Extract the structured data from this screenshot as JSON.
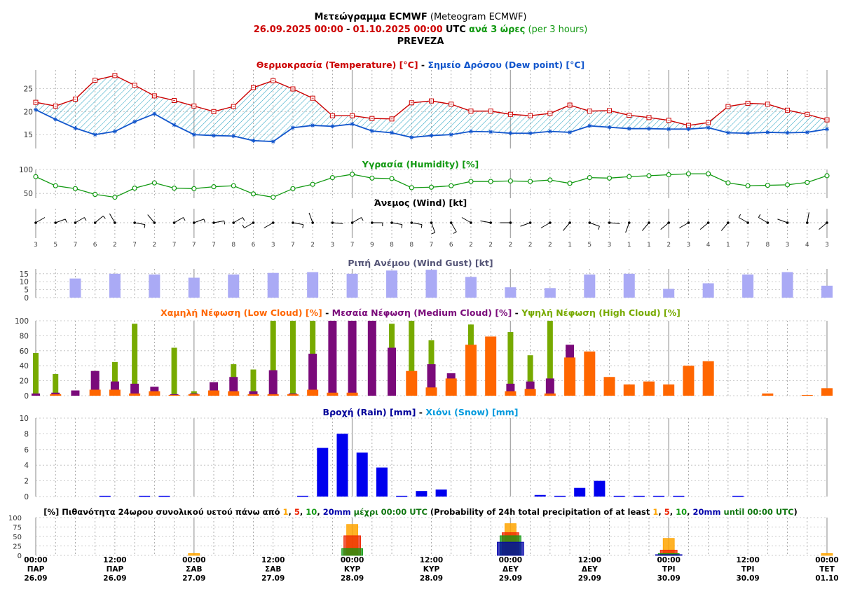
{
  "header": {
    "title_bold": "Μετεώγραμμα ECMWF",
    "title_rest": "(Meteogram ECMWF)",
    "date_from": "26.09.2025 00:00",
    "date_sep": "-",
    "date_to": "01.10.2025 00:00",
    "utc": "UTC",
    "step_bold": "ανά 3 ώρες",
    "step_rest": "(per 3 hours)",
    "location": "PREVEZA"
  },
  "colors": {
    "temp": "#cc0000",
    "dew": "#1155cc",
    "humidity": "#119911",
    "gust": "#aaaaf5",
    "low": "#ff6600",
    "medium": "#7a0a7a",
    "high": "#77aa00",
    "rain": "#0000ee",
    "snow": "#0099dd",
    "p1": "#ffa500",
    "p5": "#ee2200",
    "p10": "#119911",
    "p20": "#0000aa"
  },
  "chart_data": [
    {
      "type": "line",
      "title": [
        {
          "text": "Θερμοκρασία (Temperature) [°C]",
          "color": "#cc0000"
        },
        {
          "text": " - ",
          "color": "#000000"
        },
        {
          "text": "Σημείο Δρόσου (Dew point) [°C]",
          "color": "#1155cc"
        }
      ],
      "ylim": [
        12,
        29
      ],
      "yticks": [
        15,
        20,
        25
      ],
      "series": [
        {
          "name": "Temperature",
          "values": [
            22.0,
            21.2,
            22.7,
            26.8,
            27.8,
            25.7,
            23.4,
            22.4,
            21.2,
            20.0,
            21.1,
            25.2,
            26.7,
            24.9,
            22.9,
            19.1,
            19.1,
            18.5,
            18.4,
            21.9,
            22.3,
            21.6,
            20.1,
            20.1,
            19.4,
            19.1,
            19.6,
            21.4,
            20.1,
            20.2,
            19.2,
            18.7,
            18.1,
            17.0,
            17.6,
            21.1,
            21.8,
            21.6,
            20.3,
            19.4,
            18.2
          ]
        },
        {
          "name": "Dew point",
          "values": [
            20.4,
            18.3,
            16.4,
            15.0,
            15.7,
            17.8,
            19.5,
            17.1,
            15.0,
            14.8,
            14.7,
            13.7,
            13.5,
            16.5,
            17.0,
            16.8,
            17.3,
            15.8,
            15.4,
            14.4,
            14.8,
            15.0,
            15.7,
            15.6,
            15.3,
            15.3,
            15.7,
            15.5,
            16.9,
            16.6,
            16.3,
            16.3,
            16.2,
            16.2,
            16.5,
            15.4,
            15.3,
            15.5,
            15.4,
            15.5,
            16.2
          ]
        }
      ]
    },
    {
      "type": "line",
      "title": [
        {
          "text": "Υγρασία (Humidity) [%]",
          "color": "#119911"
        }
      ],
      "ylim": [
        40,
        100
      ],
      "yticks": [
        50,
        100
      ],
      "series": [
        {
          "name": "Humidity",
          "values": [
            85,
            66,
            60,
            48,
            42,
            61,
            72,
            61,
            60,
            64,
            66,
            49,
            42,
            60,
            69,
            83,
            90,
            82,
            81,
            62,
            63,
            66,
            75,
            75,
            76,
            75,
            78,
            71,
            83,
            82,
            85,
            87,
            89,
            91,
            91,
            72,
            66,
            67,
            68,
            73,
            87
          ]
        }
      ]
    },
    {
      "type": "scatter",
      "title": [
        {
          "text": "Άνεμος (Wind) [kt]",
          "color": "#000000"
        }
      ],
      "speed": [
        3,
        5,
        7,
        6,
        2,
        7,
        2,
        7,
        7,
        7,
        8,
        6,
        3,
        7,
        2,
        3,
        7,
        9,
        8,
        8,
        7,
        6,
        2,
        2,
        2,
        2,
        2,
        1,
        5,
        3,
        1,
        1,
        2,
        3,
        4,
        1,
        7,
        8,
        3,
        4,
        3
      ],
      "direction_deg": [
        60,
        70,
        60,
        50,
        330,
        100,
        320,
        60,
        70,
        80,
        60,
        240,
        240,
        100,
        340,
        95,
        60,
        90,
        100,
        100,
        160,
        150,
        300,
        280,
        270,
        250,
        240,
        220,
        110,
        95,
        200,
        220,
        230,
        240,
        230,
        220,
        300,
        300,
        290,
        10,
        230
      ]
    },
    {
      "type": "bar",
      "title": [
        {
          "text": "Ριπή Ανέμου (Wind Gust) [kt]",
          "color": "#555577"
        }
      ],
      "ylim": [
        0,
        18
      ],
      "yticks": [
        0,
        5,
        10,
        15
      ],
      "slot_index": [
        2,
        4,
        6,
        8,
        10,
        12,
        14,
        16,
        18,
        20,
        22,
        24,
        26,
        28,
        30,
        32,
        34,
        36,
        38,
        40
      ],
      "values": [
        12,
        15,
        14.5,
        12.5,
        14.5,
        15.5,
        16,
        15,
        17,
        17.5,
        13,
        6.5,
        6,
        14.5,
        15,
        5.5,
        9,
        14.5,
        16,
        7.5
      ]
    },
    {
      "type": "bar",
      "title": [
        {
          "text": "Χαμηλή Νέφωση (Low Cloud) [%]",
          "color": "#ff6600"
        },
        {
          "text": " - ",
          "color": "#000000"
        },
        {
          "text": "Μεσαία Νέφωση (Medium Cloud) [%]",
          "color": "#7a0a7a"
        },
        {
          "text": " - ",
          "color": "#000000"
        },
        {
          "text": "Υψηλή Νέφωση (High Cloud) [%]",
          "color": "#77aa00"
        }
      ],
      "ylim": [
        0,
        100
      ],
      "yticks": [
        0,
        20,
        40,
        60,
        80,
        100
      ],
      "series": [
        {
          "name": "High Cloud",
          "values": [
            57,
            29,
            0,
            33,
            45,
            96,
            0,
            64,
            6,
            0,
            42,
            35,
            100,
            100,
            100,
            0,
            0,
            0,
            96,
            100,
            74,
            0,
            95,
            0,
            85,
            54,
            100,
            0,
            0,
            0,
            0,
            0,
            0,
            0,
            0,
            0,
            0,
            0,
            0,
            0,
            0
          ]
        },
        {
          "name": "Medium Cloud",
          "values": [
            3,
            4,
            7,
            33,
            19,
            16,
            12,
            2,
            3,
            18,
            25,
            6,
            34,
            3,
            56,
            100,
            100,
            100,
            64,
            0,
            42,
            30,
            0,
            0,
            16,
            19,
            23,
            68,
            0,
            0,
            0,
            0,
            0,
            0,
            0,
            0,
            0,
            0,
            0,
            0,
            0
          ]
        },
        {
          "name": "Low Cloud",
          "values": [
            0,
            2,
            0,
            8,
            8,
            3,
            6,
            1,
            2,
            7,
            6,
            2,
            2,
            2,
            8,
            4,
            4,
            0,
            0,
            33,
            11,
            23,
            68,
            79,
            6,
            9,
            3,
            51,
            59,
            25,
            15,
            19,
            15,
            40,
            46,
            0,
            0,
            3,
            0,
            1,
            10
          ]
        }
      ]
    },
    {
      "type": "bar",
      "title": [
        {
          "text": "Βροχή (Rain) [mm]",
          "color": "#000099"
        },
        {
          "text": " - ",
          "color": "#000000"
        },
        {
          "text": "Χιόνι (Snow) [mm]",
          "color": "#0099dd"
        }
      ],
      "ylim": [
        0,
        10
      ],
      "yticks": [
        0,
        2,
        4,
        6,
        8,
        10
      ],
      "series": [
        {
          "name": "Rain",
          "values": [
            0,
            0,
            0,
            0,
            0.1,
            0,
            0.1,
            0.1,
            0,
            0,
            0,
            0,
            0,
            0,
            0.1,
            6.2,
            8.0,
            5.6,
            3.7,
            0.1,
            0.7,
            0.9,
            0,
            0,
            0,
            0,
            0.2,
            0.1,
            1.1,
            2.0,
            0.1,
            0.1,
            0.1,
            0.1,
            0,
            0,
            0.1,
            0,
            0,
            0,
            0
          ]
        },
        {
          "name": "Snow",
          "values": [
            0,
            0,
            0,
            0,
            0,
            0,
            0,
            0,
            0,
            0,
            0,
            0,
            0,
            0,
            0,
            0,
            0,
            0,
            0,
            0,
            0,
            0,
            0,
            0,
            0,
            0,
            0,
            0,
            0,
            0,
            0,
            0,
            0,
            0,
            0,
            0,
            0,
            0,
            0,
            0,
            0
          ]
        }
      ]
    },
    {
      "type": "bar",
      "title": [
        {
          "text": "[%] Πιθανότητα 24ωρου συνολικού υετού πάνω από ",
          "color": "#000000",
          "bold": true
        },
        {
          "text": "1",
          "color": "#ffa500",
          "bold": true
        },
        {
          "text": ", ",
          "color": "#000000",
          "bold": true
        },
        {
          "text": "5",
          "color": "#ee2200",
          "bold": true
        },
        {
          "text": ", ",
          "color": "#000000",
          "bold": true
        },
        {
          "text": "10",
          "color": "#119911",
          "bold": true
        },
        {
          "text": ", ",
          "color": "#000000",
          "bold": true
        },
        {
          "text": "20mm",
          "color": "#0000aa",
          "bold": true
        },
        {
          "text": " μέχρι 00:00 UTC",
          "color": "#117711",
          "bold": true
        },
        {
          "text": " (Probability of 24h total precipitation of at least ",
          "color": "#000000"
        },
        {
          "text": "1",
          "color": "#ffa500"
        },
        {
          "text": ", ",
          "color": "#000000"
        },
        {
          "text": "5",
          "color": "#ee2200"
        },
        {
          "text": ", ",
          "color": "#000000"
        },
        {
          "text": "10",
          "color": "#119911"
        },
        {
          "text": ", ",
          "color": "#000000"
        },
        {
          "text": "20mm",
          "color": "#0000aa"
        },
        {
          "text": " until 00:00 UTC",
          "color": "#117711"
        },
        {
          "text": ")",
          "color": "#000000"
        }
      ],
      "ylim": [
        0,
        100
      ],
      "yticks": [
        0,
        25,
        50,
        75,
        100
      ],
      "slot_index": [
        8,
        16,
        24,
        32,
        40
      ],
      "series": [
        {
          "name": "1mm",
          "values": [
            5,
            82,
            84,
            45,
            5
          ]
        },
        {
          "name": "5mm",
          "values": [
            0,
            52,
            60,
            14,
            0
          ]
        },
        {
          "name": "10mm",
          "values": [
            0,
            18,
            52,
            5,
            0
          ]
        },
        {
          "name": "20mm",
          "values": [
            0,
            0,
            35,
            2,
            0
          ]
        }
      ]
    }
  ],
  "time_axis": {
    "labels": [
      {
        "index": 0,
        "time": "00:00",
        "day": "ΠΑΡ",
        "date": "26.09"
      },
      {
        "index": 4,
        "time": "12:00",
        "day": "ΠΑΡ",
        "date": "26.09"
      },
      {
        "index": 8,
        "time": "00:00",
        "day": "ΣΑΒ",
        "date": "27.09"
      },
      {
        "index": 12,
        "time": "12:00",
        "day": "ΣΑΒ",
        "date": "27.09"
      },
      {
        "index": 16,
        "time": "00:00",
        "day": "ΚΥΡ",
        "date": "28.09"
      },
      {
        "index": 20,
        "time": "12:00",
        "day": "ΚΥΡ",
        "date": "28.09"
      },
      {
        "index": 24,
        "time": "00:00",
        "day": "ΔΕΥ",
        "date": "29.09"
      },
      {
        "index": 28,
        "time": "12:00",
        "day": "ΔΕΥ",
        "date": "29.09"
      },
      {
        "index": 32,
        "time": "00:00",
        "day": "ΤΡΙ",
        "date": "30.09"
      },
      {
        "index": 36,
        "time": "12:00",
        "day": "ΤΡΙ",
        "date": "30.09"
      },
      {
        "index": 40,
        "time": "00:00",
        "day": "ΤΕΤ",
        "date": "01.10"
      }
    ]
  }
}
